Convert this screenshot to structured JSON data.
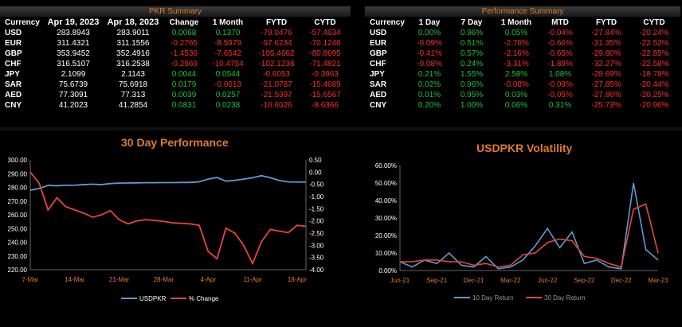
{
  "pkr_summary": {
    "title": "PKR Summary",
    "headers": [
      "Currency",
      "Apr 19, 2023",
      "Apr 18, 2023",
      "Change",
      "1 Month",
      "FYTD",
      "CYTD"
    ],
    "rows": [
      [
        "USD",
        "283.8943",
        "283.9011",
        "0.0068",
        "0.1370",
        "-79.0476",
        "-57.4634"
      ],
      [
        "EUR",
        "311.4321",
        "311.1556",
        "-0.2765",
        "-8.5979",
        "-97.6234",
        "-70.1246"
      ],
      [
        "GBP",
        "353.9452",
        "352.4916",
        "-1.4536",
        "-7.6542",
        "-105.4662",
        "-80.8695"
      ],
      [
        "CHF",
        "316.5107",
        "316.2538",
        "-0.2569",
        "-10.4754",
        "-102.1238",
        "-71.4821"
      ],
      [
        "JPY",
        "2.1099",
        "2.1143",
        "0.0044",
        "0.0544",
        "-0.6053",
        "-0.3963"
      ],
      [
        "SAR",
        "75.6739",
        "75.6918",
        "0.0179",
        "-0.0613",
        "-21.0787",
        "-15.4689"
      ],
      [
        "AED",
        "77.3091",
        "77.313",
        "0.0039",
        "0.0257",
        "-21.5397",
        "-15.6567"
      ],
      [
        "CNY",
        "41.2023",
        "41.2854",
        "0.0831",
        "0.0238",
        "-10.6026",
        "-8.6366"
      ]
    ]
  },
  "performance_summary": {
    "title": "Performance Summary",
    "headers": [
      "Currency",
      "1 Day",
      "7 Day",
      "1 Month",
      "MTD",
      "FYTD",
      "CYTD"
    ],
    "rows": [
      [
        "USD",
        "0.00%",
        "0.96%",
        "0.05%",
        "-0.04%",
        "-27.84%",
        "-20.24%"
      ],
      [
        "EUR",
        "-0.09%",
        "0.51%",
        "-2.76%",
        "-0.66%",
        "-31.35%",
        "-22.52%"
      ],
      [
        "GBP",
        "-0.41%",
        "0.57%",
        "-2.16%",
        "-0.65%",
        "-29.80%",
        "-22.85%"
      ],
      [
        "CHF",
        "-0.08%",
        "0.24%",
        "-3.31%",
        "-1.89%",
        "-32.27%",
        "-22.58%"
      ],
      [
        "JPY",
        "0.21%",
        "1.55%",
        "2.58%",
        "1.08%",
        "-28.69%",
        "-18.78%"
      ],
      [
        "SAR",
        "0.02%",
        "0.96%",
        "-0.08%",
        "-0.09%",
        "-27.85%",
        "-20.44%"
      ],
      [
        "AED",
        "0.01%",
        "0.95%",
        "0.03%",
        "-0.05%",
        "-27.86%",
        "-20.25%"
      ],
      [
        "CNY",
        "0.20%",
        "1.00%",
        "0.06%",
        "0.31%",
        "-25.73%",
        "-20.96%"
      ]
    ]
  },
  "colors": {
    "positive": "#19c23a",
    "negative": "#ff2a2a",
    "accent": "#e07a2e",
    "usdpkr": "#5b9bd5",
    "pct": "#e8453c"
  },
  "chart_data": [
    {
      "type": "line",
      "title": "30 Day Performance",
      "x": [
        "7-Mar",
        "8-Mar",
        "9-Mar",
        "10-Mar",
        "13-Mar",
        "14-Mar",
        "15-Mar",
        "16-Mar",
        "17-Mar",
        "20-Mar",
        "21-Mar",
        "22-Mar",
        "23-Mar",
        "24-Mar",
        "27-Mar",
        "28-Mar",
        "29-Mar",
        "30-Mar",
        "31-Mar",
        "3-Apr",
        "4-Apr",
        "5-Apr",
        "6-Apr",
        "7-Apr",
        "10-Apr",
        "11-Apr",
        "12-Apr",
        "13-Apr",
        "14-Apr",
        "17-Apr",
        "18-Apr",
        "19-Apr"
      ],
      "xticks": [
        "7-Mar",
        "14-Mar",
        "21-Mar",
        "28-Mar",
        "4-Apr",
        "11-Apr",
        "18-Apr"
      ],
      "ylim": [
        220,
        300
      ],
      "yticks": [
        "220.00",
        "230.00",
        "240.00",
        "250.00",
        "260.00",
        "270.00",
        "280.00",
        "290.00",
        "300.00"
      ],
      "y2lim": [
        -4,
        0.5
      ],
      "y2ticks": [
        "-4.00",
        "-3.50",
        "-3.00",
        "-2.50",
        "-2.00",
        "-1.50",
        "-1.00",
        "-0.50",
        "0.00",
        "0.50"
      ],
      "legend": "bottom",
      "series": [
        {
          "name": "USDPKR",
          "axis": "left",
          "values": [
            277.9,
            279.2,
            281.4,
            281.2,
            281.5,
            281.6,
            282.0,
            282.3,
            282.0,
            282.8,
            283.1,
            283.2,
            283.3,
            283.4,
            283.4,
            283.5,
            283.5,
            283.6,
            283.6,
            284.1,
            286.0,
            287.2,
            284.5,
            285.1,
            286.0,
            287.0,
            288.5,
            287.0,
            285.0,
            284.0,
            283.9,
            283.9
          ]
        },
        {
          "name": "% Change",
          "axis": "right",
          "values": [
            0.0,
            -0.45,
            -1.55,
            -1.05,
            -1.42,
            -1.55,
            -1.68,
            -1.85,
            -1.75,
            -1.58,
            -1.95,
            -2.12,
            -2.0,
            -1.95,
            -1.98,
            -2.02,
            -2.08,
            -2.1,
            -2.12,
            -2.18,
            -3.25,
            -3.55,
            -2.3,
            -2.5,
            -3.0,
            -3.75,
            -2.85,
            -2.35,
            -2.42,
            -2.48,
            -2.18,
            -2.22
          ]
        }
      ]
    },
    {
      "type": "line",
      "title": "USDPKR Volatility",
      "x": [
        "Jun-21",
        "Jul-21",
        "Aug-21",
        "Sep-21",
        "Oct-21",
        "Nov-21",
        "Dec-21",
        "Jan-22",
        "Feb-22",
        "Mar-22",
        "Apr-22",
        "May-22",
        "Jun-22",
        "Jul-22",
        "Aug-22",
        "Sep-22",
        "Oct-22",
        "Nov-22",
        "Dec-22",
        "Jan-23",
        "Feb-23",
        "Mar-23"
      ],
      "xticks": [
        "Jun-21",
        "Sep-21",
        "Dec-21",
        "Mar-22",
        "Jun-22",
        "Sep-22",
        "Dec-22",
        "Mar-23"
      ],
      "ylim": [
        0,
        60
      ],
      "yticks": [
        "0.00%",
        "10.00%",
        "20.00%",
        "30.00%",
        "40.00%",
        "50.00%",
        "60.00%"
      ],
      "legend": "bottom",
      "series": [
        {
          "name": "10 Day Return",
          "values": [
            5,
            2,
            6,
            4,
            10,
            3,
            2,
            8,
            1,
            2,
            6,
            14,
            24,
            13,
            22,
            4,
            6,
            2,
            1,
            50,
            12,
            6
          ]
        },
        {
          "name": "30 Day Return",
          "values": [
            5,
            5,
            6,
            6,
            5,
            5,
            3,
            4,
            2,
            3,
            9,
            10,
            16,
            18,
            17,
            8,
            7,
            4,
            2,
            35,
            38,
            10
          ]
        }
      ]
    }
  ]
}
